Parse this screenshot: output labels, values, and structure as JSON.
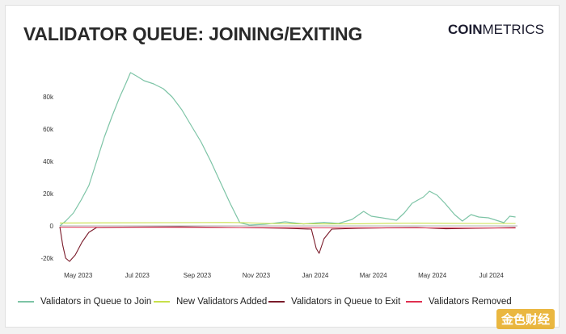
{
  "header": {
    "title": "VALIDATOR QUEUE: JOINING/EXITING",
    "brand_bold": "COIN",
    "brand_light": "METRICS"
  },
  "watermark": "金色财经",
  "colors": {
    "join": "#7dc4a6",
    "added": "#c8e04a",
    "exit": "#7a1b2a",
    "removed": "#e03050",
    "axis_text": "#333333",
    "zero_line": "#b0b0b0"
  },
  "chart_data": {
    "type": "line",
    "title": "VALIDATOR QUEUE: JOINING/EXITING",
    "xlabel": "",
    "ylabel": "",
    "ylim": [
      -25000,
      100000
    ],
    "y_ticks": [
      {
        "value": 80000,
        "label": "80k"
      },
      {
        "value": 60000,
        "label": "60k"
      },
      {
        "value": 40000,
        "label": "40k"
      },
      {
        "value": 20000,
        "label": "20k"
      },
      {
        "value": 0,
        "label": "0"
      },
      {
        "value": -20000,
        "label": "-20k"
      }
    ],
    "x_ticks": [
      {
        "date": "2023-05-01",
        "label": "May 2023"
      },
      {
        "date": "2023-07-01",
        "label": "Jul 2023"
      },
      {
        "date": "2023-09-01",
        "label": "Sep 2023"
      },
      {
        "date": "2023-11-01",
        "label": "Nov 2023"
      },
      {
        "date": "2024-01-01",
        "label": "Jan 2024"
      },
      {
        "date": "2024-03-01",
        "label": "Mar 2024"
      },
      {
        "date": "2024-05-01",
        "label": "May 2024"
      },
      {
        "date": "2024-07-01",
        "label": "Jul 2024"
      }
    ],
    "xlim": [
      "2023-04-12",
      "2024-07-28"
    ],
    "grid": false,
    "legend_position": "bottom",
    "series": [
      {
        "name": "Validators in Queue to Join",
        "color_key": "join",
        "points": [
          [
            "2023-04-12",
            0
          ],
          [
            "2023-04-18",
            3000
          ],
          [
            "2023-04-26",
            8000
          ],
          [
            "2023-05-04",
            16000
          ],
          [
            "2023-05-12",
            25000
          ],
          [
            "2023-05-20",
            40000
          ],
          [
            "2023-05-28",
            55000
          ],
          [
            "2023-06-05",
            68000
          ],
          [
            "2023-06-13",
            80000
          ],
          [
            "2023-06-19",
            88000
          ],
          [
            "2023-06-24",
            95000
          ],
          [
            "2023-06-30",
            93000
          ],
          [
            "2023-07-08",
            90000
          ],
          [
            "2023-07-18",
            88000
          ],
          [
            "2023-07-28",
            85000
          ],
          [
            "2023-08-06",
            80000
          ],
          [
            "2023-08-16",
            72000
          ],
          [
            "2023-08-26",
            62000
          ],
          [
            "2023-09-05",
            52000
          ],
          [
            "2023-09-15",
            40000
          ],
          [
            "2023-09-25",
            27000
          ],
          [
            "2023-10-05",
            14000
          ],
          [
            "2023-10-15",
            2000
          ],
          [
            "2023-10-25",
            500
          ],
          [
            "2023-11-10",
            1000
          ],
          [
            "2023-12-01",
            2500
          ],
          [
            "2023-12-20",
            1200
          ],
          [
            "2024-01-10",
            2200
          ],
          [
            "2024-01-25",
            1500
          ],
          [
            "2024-02-08",
            4000
          ],
          [
            "2024-02-20",
            9000
          ],
          [
            "2024-02-28",
            6000
          ],
          [
            "2024-03-10",
            5000
          ],
          [
            "2024-03-25",
            3500
          ],
          [
            "2024-04-02",
            8000
          ],
          [
            "2024-04-10",
            14000
          ],
          [
            "2024-04-22",
            18000
          ],
          [
            "2024-04-28",
            21500
          ],
          [
            "2024-05-06",
            19000
          ],
          [
            "2024-05-14",
            14000
          ],
          [
            "2024-05-24",
            7000
          ],
          [
            "2024-06-01",
            3000
          ],
          [
            "2024-06-10",
            7000
          ],
          [
            "2024-06-18",
            5500
          ],
          [
            "2024-06-28",
            5000
          ],
          [
            "2024-07-06",
            3500
          ],
          [
            "2024-07-14",
            2000
          ],
          [
            "2024-07-20",
            6000
          ],
          [
            "2024-07-26",
            5500
          ]
        ]
      },
      {
        "name": "New Validators Added",
        "color_key": "added",
        "points": [
          [
            "2023-04-12",
            1800
          ],
          [
            "2023-06-01",
            1900
          ],
          [
            "2023-08-01",
            2000
          ],
          [
            "2023-10-01",
            2100
          ],
          [
            "2023-10-20",
            2000
          ],
          [
            "2023-11-15",
            1500
          ],
          [
            "2023-12-15",
            1300
          ],
          [
            "2024-01-15",
            1200
          ],
          [
            "2024-02-15",
            1300
          ],
          [
            "2024-03-15",
            1600
          ],
          [
            "2024-04-15",
            1700
          ],
          [
            "2024-05-15",
            1600
          ],
          [
            "2024-06-15",
            1500
          ],
          [
            "2024-07-26",
            1500
          ]
        ]
      },
      {
        "name": "Validators in Queue to Exit",
        "color_key": "exit",
        "points": [
          [
            "2023-04-12",
            -500
          ],
          [
            "2023-04-15",
            -12000
          ],
          [
            "2023-04-18",
            -20000
          ],
          [
            "2023-04-22",
            -22000
          ],
          [
            "2023-04-28",
            -18000
          ],
          [
            "2023-05-05",
            -10000
          ],
          [
            "2023-05-12",
            -4000
          ],
          [
            "2023-05-20",
            -1000
          ],
          [
            "2023-06-15",
            -800
          ],
          [
            "2023-08-15",
            -600
          ],
          [
            "2023-10-15",
            -1000
          ],
          [
            "2023-12-01",
            -1500
          ],
          [
            "2023-12-28",
            -2000
          ],
          [
            "2024-01-02",
            -14000
          ],
          [
            "2024-01-05",
            -17000
          ],
          [
            "2024-01-10",
            -8000
          ],
          [
            "2024-01-18",
            -2000
          ],
          [
            "2024-02-15",
            -1500
          ],
          [
            "2024-03-15",
            -1200
          ],
          [
            "2024-04-15",
            -1000
          ],
          [
            "2024-05-15",
            -1800
          ],
          [
            "2024-06-15",
            -1500
          ],
          [
            "2024-07-26",
            -1000
          ]
        ]
      },
      {
        "name": "Validators Removed",
        "color_key": "removed",
        "points": [
          [
            "2023-04-12",
            -800
          ],
          [
            "2023-06-01",
            -900
          ],
          [
            "2023-08-01",
            -900
          ],
          [
            "2023-10-01",
            -1000
          ],
          [
            "2023-12-01",
            -1100
          ],
          [
            "2024-02-01",
            -1200
          ],
          [
            "2024-04-01",
            -1200
          ],
          [
            "2024-06-01",
            -1300
          ],
          [
            "2024-07-26",
            -1300
          ]
        ]
      }
    ]
  }
}
